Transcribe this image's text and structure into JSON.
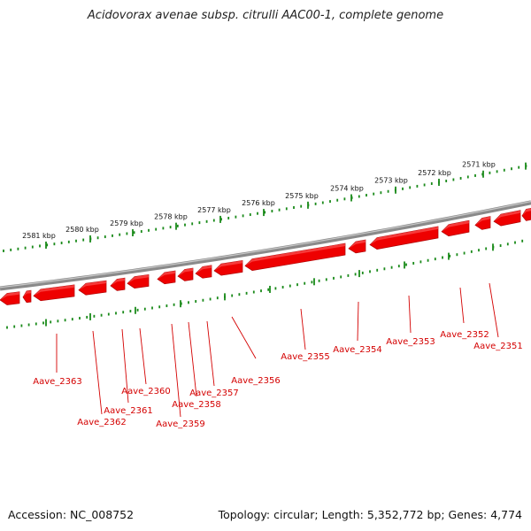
{
  "title": "Acidovorax avenae subsp. citrulli AAC00-1, complete genome",
  "footer": {
    "accession": "Accession: NC_008752",
    "summary": "Topology: circular; Length: 5,352,772 bp; Genes: 4,774"
  },
  "colors": {
    "backbone": "#8a8a8a",
    "gene": "#ee0000",
    "gene_dark": "#b00000",
    "tick": "#1a8a1a",
    "label": "#d40000"
  },
  "kbp_labels": [
    "2581 kbp",
    "2580 kbp",
    "2579 kbp",
    "2578 kbp",
    "2577 kbp",
    "2576 kbp",
    "2575 kbp",
    "2574 kbp",
    "2573 kbp",
    "2572 kbp",
    "2571 kbp"
  ],
  "genes": [
    "Aave_2363",
    "Aave_2362",
    "Aave_2361",
    "Aave_2360",
    "Aave_2359",
    "Aave_2358",
    "Aave_2357",
    "Aave_2356",
    "Aave_2355",
    "Aave_2354",
    "Aave_2353",
    "Aave_2352",
    "Aave_2351"
  ]
}
